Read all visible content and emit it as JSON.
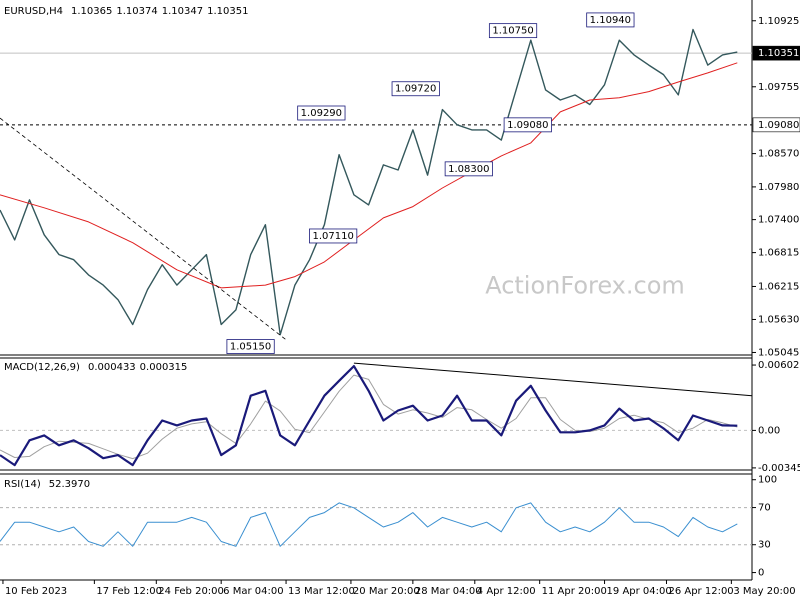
{
  "chart_data": [
    {
      "type": "line",
      "title": "EURUSD,H4",
      "readings": [
        1.10365,
        1.10374,
        1.10347,
        1.10351
      ],
      "watermark": "ActionForex.com",
      "xlim": [
        0,
        255
      ],
      "ylim": [
        1.05,
        1.1124
      ],
      "yticks": [
        1.10925,
        1.09755,
        {
          "value": 1.0857,
          "label": "1.08570"
        },
        {
          "value": 1.0798,
          "label": "1.07980"
        },
        {
          "value": 1.074,
          "label": "1.07400"
        },
        1.06815,
        1.06215,
        {
          "value": 1.0563,
          "label": "1.05630"
        },
        1.05045
      ],
      "levels": [
        {
          "value": 1.10351,
          "label": "1.10351",
          "color": "#c0c0c0",
          "dashed": false,
          "label_color": "#ffffff",
          "label_bg": "#000000"
        },
        {
          "value": 1.0908,
          "label": "1.09080",
          "color": "#000000",
          "dashed": true,
          "label_color": "#000000",
          "label_bg": "#ffffff"
        }
      ],
      "series": [
        {
          "color": "#34585c",
          "width": 1.4,
          "dashed": false,
          "x": [
            0,
            5,
            10,
            15,
            20,
            25,
            30,
            35,
            40,
            45,
            50,
            55,
            60,
            65,
            70,
            75,
            80,
            85,
            90,
            95,
            100,
            105,
            110,
            115,
            120,
            125,
            130,
            135,
            140,
            145,
            150,
            155,
            160,
            165,
            170,
            175,
            180,
            185,
            190,
            195,
            200,
            205,
            210,
            215,
            220,
            225,
            230,
            235,
            240,
            245,
            250
          ],
          "values": [
            1.0757,
            1.0704,
            1.0775,
            1.0713,
            1.0678,
            1.0669,
            1.0642,
            1.0624,
            1.0598,
            1.0554,
            1.0616,
            1.066,
            1.0624,
            1.0651,
            1.0678,
            1.0554,
            1.058,
            1.0678,
            1.0731,
            1.0536,
            1.0624,
            1.0669,
            1.0731,
            1.0855,
            1.0784,
            1.0766,
            1.0837,
            1.0828,
            1.0899,
            1.0819,
            1.0935,
            1.0908,
            1.0899,
            1.0899,
            1.0881,
            1.097,
            1.1058,
            1.097,
            1.0952,
            1.0961,
            1.0944,
            1.0979,
            1.1058,
            1.1032,
            1.1014,
            1.0997,
            1.0961,
            1.1077,
            1.1014,
            1.1032,
            1.1037
          ]
        },
        {
          "color": "#e02020",
          "width": 1,
          "dashed": false,
          "x": [
            0,
            15,
            30,
            45,
            60,
            75,
            90,
            100,
            110,
            120,
            130,
            140,
            150,
            160,
            170,
            180,
            190,
            200,
            210,
            220,
            230,
            240,
            250
          ],
          "values": [
            1.0784,
            1.0761,
            1.0736,
            1.0699,
            1.0651,
            1.0619,
            1.0624,
            1.0639,
            1.0665,
            1.0704,
            1.0743,
            1.0763,
            1.0796,
            1.0825,
            1.0853,
            1.0876,
            1.0931,
            1.0952,
            1.0956,
            1.0967,
            1.0984,
            1.1,
            1.1018
          ]
        },
        {
          "color": "#000000",
          "width": 0.8,
          "dashed": true,
          "x": [
            0,
            97
          ],
          "values": [
            1.092,
            1.0527
          ]
        }
      ],
      "annotations": [
        {
          "label": "1.09290",
          "value": 1.0929,
          "x": 117
        },
        {
          "label": "1.09720",
          "value": 1.0972,
          "x": 149
        },
        {
          "label": "1.10750",
          "value": 1.1075,
          "x": 182
        },
        {
          "label": "1.10940",
          "value": 1.1094,
          "x": 215
        },
        {
          "label": "1.09080",
          "value": 1.0908,
          "x": 187
        },
        {
          "label": "1.08300",
          "value": 1.083,
          "x": 167
        },
        {
          "label": "1.07110",
          "value": 1.0711,
          "x": 121
        },
        {
          "label": "1.05150",
          "value": 1.0515,
          "x": 93
        }
      ]
    },
    {
      "type": "line",
      "title": "MACD(12,26,9)",
      "readings": [
        0.000433,
        0.000315
      ],
      "xlim": [
        0,
        255
      ],
      "ylim": [
        -0.00365,
        0.00658
      ],
      "yticks": [
        0.006023,
        {
          "value": 0,
          "label": "0.00"
        },
        -0.003456
      ],
      "levels": [
        {
          "value": 0,
          "color": "#c0c0c0",
          "dashed": true
        }
      ],
      "series": [
        {
          "color": "#a0a0a0",
          "width": 1,
          "dashed": false,
          "x": [
            0,
            5,
            10,
            15,
            20,
            25,
            30,
            35,
            40,
            45,
            50,
            55,
            60,
            65,
            70,
            75,
            80,
            85,
            90,
            95,
            100,
            105,
            110,
            115,
            120,
            125,
            130,
            135,
            140,
            145,
            150,
            155,
            160,
            165,
            170,
            175,
            180,
            185,
            190,
            195,
            200,
            205,
            210,
            215,
            220,
            225,
            230,
            235,
            240,
            245,
            250
          ],
          "values": [
            -0.0018,
            -0.0025,
            -0.0024,
            -0.0015,
            -0.001,
            -0.0011,
            -0.0012,
            -0.0017,
            -0.0022,
            -0.0026,
            -0.0021,
            -0.0008,
            0.0002,
            0.0006,
            0.0008,
            -0.0003,
            -0.0012,
            0.0006,
            0.0027,
            0.0018,
            0.0001,
            -0.0002,
            0.0017,
            0.0036,
            0.0051,
            0.0047,
            0.0024,
            0.0015,
            0.0019,
            0.0016,
            0.0012,
            0.0021,
            0.0019,
            0.001,
            0.0002,
            0.0011,
            0.003,
            0.003,
            0.001,
            0,
            -0.0001,
            0.0002,
            0.0011,
            0.0014,
            0.001,
            0.0007,
            -0.0002,
            0.0002,
            0.001,
            0.0007,
            0.000315
          ]
        },
        {
          "color": "#1a1a7a",
          "width": 2.2,
          "dashed": false,
          "x": [
            0,
            5,
            10,
            15,
            20,
            25,
            30,
            35,
            40,
            45,
            50,
            55,
            60,
            65,
            70,
            75,
            80,
            85,
            90,
            95,
            100,
            105,
            110,
            115,
            120,
            125,
            130,
            135,
            140,
            145,
            150,
            155,
            160,
            165,
            170,
            175,
            180,
            185,
            190,
            195,
            200,
            205,
            210,
            215,
            220,
            225,
            230,
            235,
            240,
            245,
            250
          ],
          "values": [
            -0.00228,
            -0.0032,
            -0.00091,
            -0.00046,
            -0.00137,
            -0.00091,
            -0.00164,
            -0.00256,
            -0.00228,
            -0.0032,
            -0.00091,
            0.00091,
            0.00046,
            0.00091,
            0.0011,
            -0.00228,
            -0.00137,
            0.0032,
            0.00365,
            -0.00046,
            -0.00137,
            0.00091,
            0.0032,
            0.00457,
            0.00593,
            0.00365,
            0.00091,
            0.00183,
            0.00228,
            0.00091,
            0.00137,
            0.0032,
            0.00091,
            0.00091,
            -0.00046,
            0.00274,
            0.00411,
            0.00183,
            -0.00018,
            -0.00018,
            0,
            0.00046,
            0.00201,
            0.00091,
            0.0011,
            0.00018,
            -0.00091,
            0.00137,
            0.00091,
            0.00046,
            0.000433
          ]
        },
        {
          "color": "#000000",
          "width": 1,
          "dashed": false,
          "x": [
            120,
            255
          ],
          "values": [
            0.0062,
            0.0032
          ]
        }
      ]
    },
    {
      "type": "line",
      "title": "RSI(14)",
      "readings": [
        {
          "value": 52.397,
          "label": "52.3970"
        }
      ],
      "xlim": [
        0,
        255
      ],
      "ylim": [
        -8,
        104
      ],
      "yticks": [
        100,
        70,
        30,
        0
      ],
      "levels": [
        {
          "value": 70,
          "color": "#b0b0b0",
          "dashed": true
        },
        {
          "value": 30,
          "color": "#b0b0b0",
          "dashed": true
        }
      ],
      "series": [
        {
          "color": "#3a8fd0",
          "width": 1,
          "dashed": false,
          "x": [
            0,
            5,
            10,
            15,
            20,
            25,
            30,
            35,
            40,
            45,
            50,
            55,
            60,
            65,
            70,
            75,
            80,
            85,
            90,
            95,
            100,
            105,
            110,
            115,
            120,
            125,
            130,
            135,
            140,
            145,
            150,
            155,
            160,
            165,
            170,
            175,
            180,
            185,
            190,
            195,
            200,
            205,
            210,
            215,
            220,
            225,
            230,
            235,
            240,
            245,
            250
          ],
          "values": [
            33.5,
            54.2,
            54.2,
            49.1,
            43.9,
            49.1,
            33.5,
            28.3,
            43.9,
            28.3,
            54.2,
            54.2,
            54.2,
            59.4,
            54.2,
            33.5,
            28.3,
            59.4,
            64.6,
            28.3,
            43.9,
            59.4,
            64.6,
            75,
            69.8,
            59.4,
            49.1,
            54.2,
            64.6,
            49.1,
            59.4,
            54.2,
            49.1,
            54.2,
            43.9,
            69.8,
            75,
            54.2,
            43.9,
            49.1,
            43.9,
            54.2,
            69.8,
            54.2,
            54.2,
            49.1,
            38.7,
            59.4,
            49.1,
            43.9,
            52.397
          ]
        }
      ],
      "xticks": [
        {
          "value": 1,
          "label": "10 Feb 2023"
        },
        {
          "value": 32,
          "label": "17 Feb 12:00"
        },
        {
          "value": 53,
          "label": "24 Feb 20:00"
        },
        {
          "value": 75,
          "label": "6 Mar 04:00"
        },
        {
          "value": 97,
          "label": "13 Mar 12:00"
        },
        {
          "value": 119,
          "label": "20 Mar 20:00"
        },
        {
          "value": 140,
          "label": "28 Mar 04:00"
        },
        {
          "value": 161,
          "label": "4 Apr 12:00"
        },
        {
          "value": 183,
          "label": "11 Apr 20:00"
        },
        {
          "value": 205,
          "label": "19 Apr 04:00"
        },
        {
          "value": 226,
          "label": "26 Apr 12:00"
        },
        {
          "value": 248,
          "label": "3 May 20:00"
        }
      ]
    }
  ]
}
